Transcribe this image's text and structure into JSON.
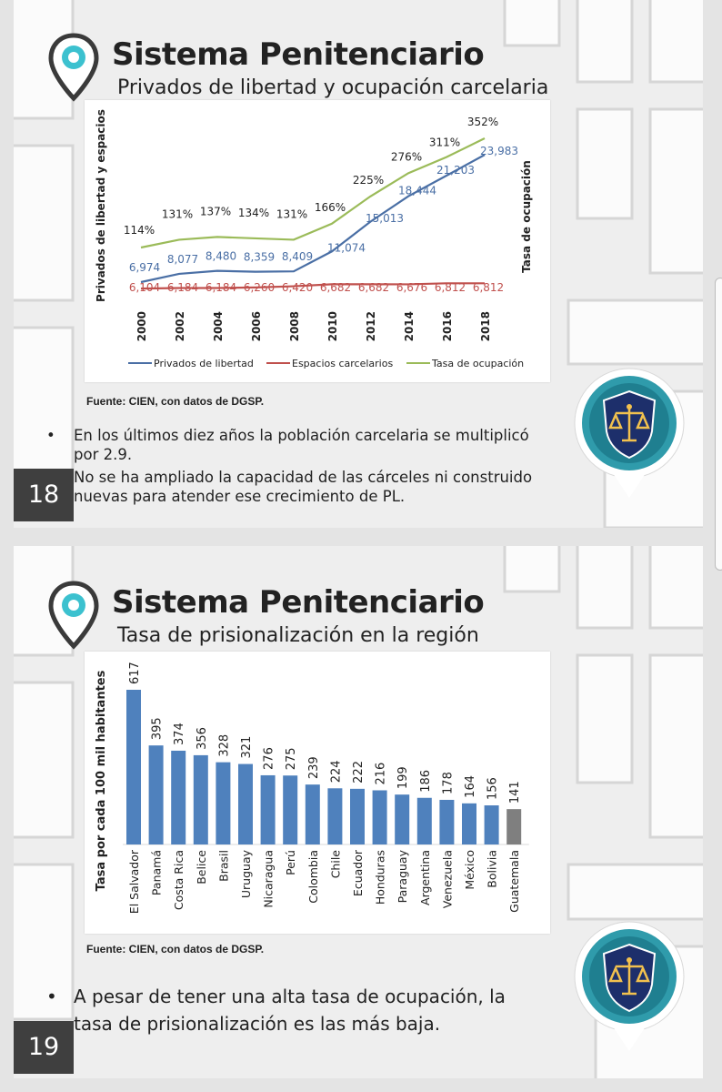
{
  "slides": [
    {
      "number": "18",
      "title": "Sistema Penitenciario",
      "subtitle": "Privados de libertad y ocupación carcelaria",
      "source": "Fuente: CIEN, con datos de DGSP.",
      "bullets": [
        "En los últimos diez años la población carcelaria se multiplicó por 2.9.",
        "No se ha ampliado la capacidad de las cárceles ni construido nuevas para atender ese crecimiento de PL."
      ]
    },
    {
      "number": "19",
      "title": "Sistema Penitenciario",
      "subtitle": "Tasa de prisionalización en la región",
      "source": "Fuente: CIEN, con datos de DGSP.",
      "bullets": [
        "A pesar de tener una alta tasa de ocupación, la tasa de prisionalización es las más baja."
      ]
    }
  ],
  "colors": {
    "privados": "#4a6fa5",
    "espacios": "#c0504d",
    "tasa": "#9bbb59",
    "bar": "#4f81bd",
    "bar_highlight": "#7f7f7f"
  },
  "chart_data": [
    {
      "type": "line",
      "ylabel_left": "Privados de libertad y espacios",
      "ylabel_right": "Tasa de ocupación",
      "x": [
        "2000",
        "2002",
        "2004",
        "2006",
        "2008",
        "2010",
        "2012",
        "2014",
        "2016",
        "2018"
      ],
      "series": [
        {
          "name": "Privados de libertad",
          "values": [
            6974,
            8077,
            8480,
            8359,
            8409,
            11074,
            15013,
            18444,
            21203,
            23983
          ],
          "labels": [
            "6,974",
            "8,077",
            "8,480",
            "8,359",
            "8,409",
            "11,074",
            "15,013",
            "18,444",
            "21,203",
            "23,983"
          ]
        },
        {
          "name": "Espacios carcelarios",
          "values": [
            6104,
            6184,
            6184,
            6260,
            6420,
            6682,
            6682,
            6676,
            6812,
            6812
          ],
          "labels": [
            "6,104",
            "6,184",
            "6,184",
            "6,260",
            "6,420",
            "6,682",
            "6,682",
            "6,676",
            "6,812",
            "6,812"
          ]
        },
        {
          "name": "Tasa de ocupación",
          "values": [
            114,
            131,
            137,
            134,
            131,
            166,
            225,
            276,
            311,
            352
          ],
          "labels": [
            "114%",
            "131%",
            "137%",
            "134%",
            "131%",
            "166%",
            "225%",
            "276%",
            "311%",
            "352%"
          ]
        }
      ],
      "legend": [
        "Privados de libertad",
        "Espacios carcelarios",
        "Tasa de ocupación"
      ],
      "legend_position": "bottom"
    },
    {
      "type": "bar",
      "ylabel": "Tasa por cada 100 mil habitantes",
      "categories": [
        "El Salvador",
        "Panamá",
        "Costa Rica",
        "Belice",
        "Brasil",
        "Uruguay",
        "Nicaragua",
        "Perú",
        "Colombia",
        "Chile",
        "Ecuador",
        "Honduras",
        "Paraguay",
        "Argentina",
        "Venezuela",
        "México",
        "Bolivia",
        "Guatemala"
      ],
      "values": [
        617,
        395,
        374,
        356,
        328,
        321,
        276,
        275,
        239,
        224,
        222,
        216,
        199,
        186,
        178,
        164,
        156,
        141
      ],
      "highlight": "Guatemala"
    }
  ]
}
